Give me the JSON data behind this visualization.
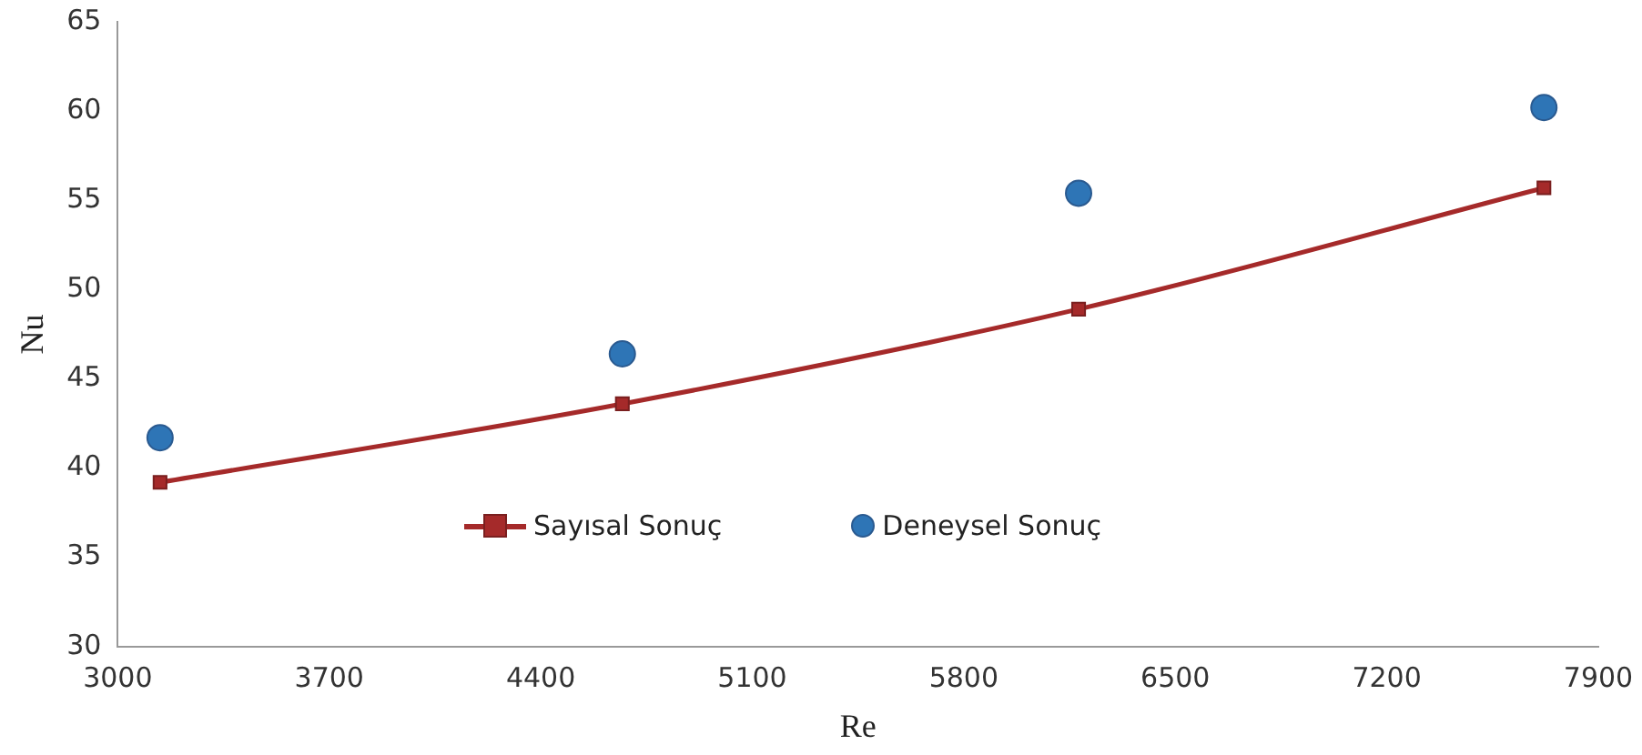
{
  "chart_data": {
    "type": "line",
    "xlabel": "Re",
    "ylabel": "Nu",
    "xlim": [
      3000,
      7900
    ],
    "xticks": [
      3000,
      3700,
      4400,
      5100,
      5800,
      6500,
      7200,
      7900
    ],
    "ylim": [
      30,
      65
    ],
    "yticks": [
      30,
      35,
      40,
      45,
      50,
      55,
      60,
      65
    ],
    "grid": false,
    "legend": "bottom",
    "series": [
      {
        "name": "Sayısal Sonuç",
        "marker": "square",
        "color": "#a52a2a",
        "x": [
          3140,
          4670,
          6180,
          7720
        ],
        "values": [
          39.2,
          43.6,
          48.9,
          55.7
        ]
      },
      {
        "name": "Deneysel Sonuç",
        "type": "scatter",
        "marker": "circle",
        "color": "#2e75b6",
        "x": [
          3140,
          4670,
          6180,
          7720
        ],
        "values": [
          41.7,
          46.4,
          55.4,
          60.2
        ]
      }
    ]
  }
}
